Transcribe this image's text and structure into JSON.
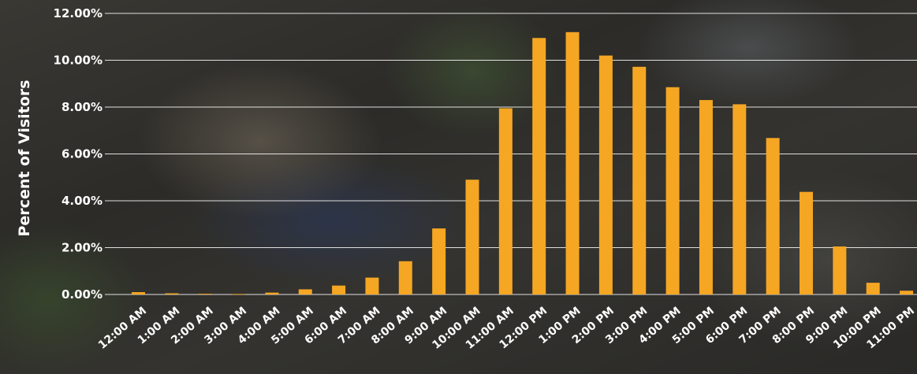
{
  "chart_data": {
    "type": "bar",
    "title": "",
    "xlabel": "",
    "ylabel": "Percent of Visitors",
    "ylim": [
      0,
      12
    ],
    "y_tick_values": [
      0,
      2,
      4,
      6,
      8,
      10,
      12
    ],
    "y_tick_labels": [
      "0.00%",
      "2.00%",
      "4.00%",
      "6.00%",
      "8.00%",
      "10.00%",
      "12.00%"
    ],
    "grid": true,
    "legend": "none",
    "bar_color": "#f5a623",
    "grid_color": "#ffffff",
    "categories": [
      "12:00 AM",
      "1:00 AM",
      "2:00 AM",
      "3:00 AM",
      "4:00 AM",
      "5:00 AM",
      "6:00 AM",
      "7:00 AM",
      "8:00 AM",
      "9:00 AM",
      "10:00 AM",
      "11:00 AM",
      "12:00 PM",
      "1:00 PM",
      "2:00 PM",
      "3:00 PM",
      "4:00 PM",
      "5:00 PM",
      "6:00 PM",
      "7:00 PM",
      "8:00 PM",
      "9:00 PM",
      "10:00 PM",
      "11:00 PM"
    ],
    "values": [
      0.1,
      0.05,
      0.03,
      0.02,
      0.08,
      0.22,
      0.38,
      0.72,
      1.42,
      2.82,
      4.9,
      7.95,
      10.95,
      11.2,
      10.2,
      9.72,
      8.85,
      8.3,
      8.12,
      6.68,
      4.38,
      2.05,
      0.5,
      0.16
    ]
  }
}
